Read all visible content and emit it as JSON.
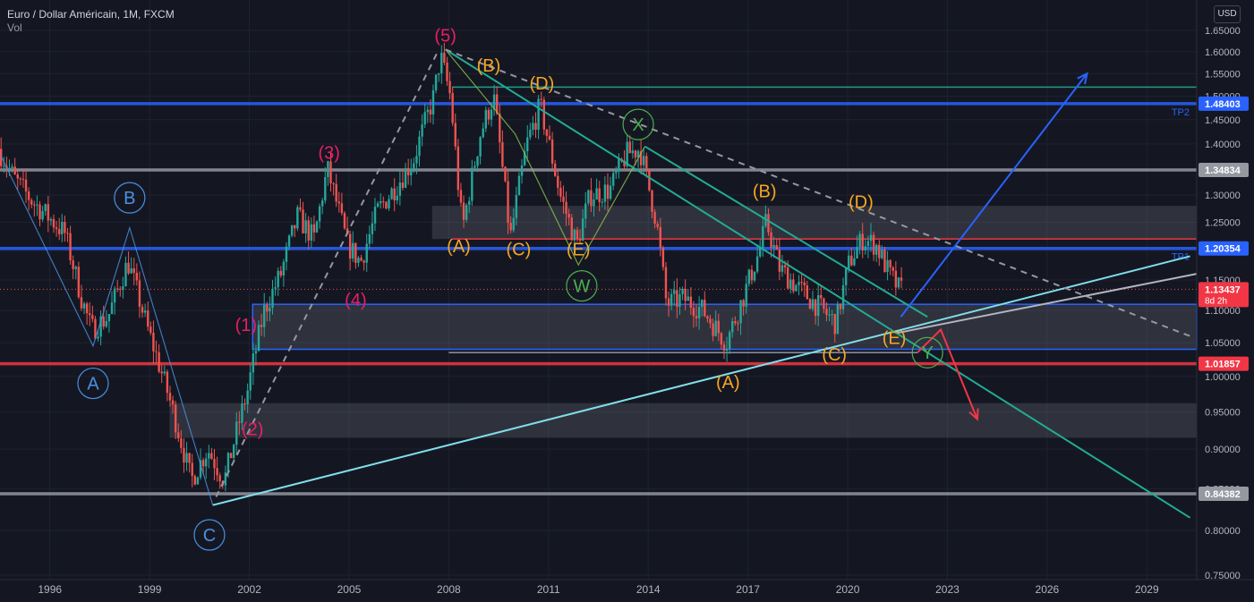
{
  "header": {
    "title": "Euro / Dollar Américain, 1M, FXCM",
    "indicator": "Vol",
    "currency_button": "USD"
  },
  "colors": {
    "background": "#141722",
    "grid": "#1e2230",
    "candle_up": "#26a69a",
    "candle_down": "#ef5350",
    "wave_primary": "#e91e63",
    "wave_corrective": "#f5a623",
    "wave_abc": "#4a90e2",
    "wave_wxy": "#4caf50",
    "level_blue": "#2962ff",
    "level_red": "#f23645",
    "level_gray": "#9598a1",
    "trend_cyan": "#80deea",
    "trend_teal": "#22ab94",
    "projection_blue": "#2962ff",
    "projection_red": "#f23645"
  },
  "chart_data": {
    "type": "candlestick",
    "symbol": "EURUSD",
    "timeframe": "1M",
    "x_range": [
      1995.0,
      2031.0
    ],
    "ylim": [
      0.75,
      1.67
    ],
    "log_scale": true,
    "grid": true,
    "x_ticks": [
      "1996",
      "1999",
      "2002",
      "2005",
      "2008",
      "2011",
      "2014",
      "2017",
      "2020",
      "2023",
      "2026",
      "2029"
    ],
    "y_ticks": [
      "1.65000",
      "1.60000",
      "1.55000",
      "1.50000",
      "1.45000",
      "1.40000",
      "1.35000",
      "1.30000",
      "1.25000",
      "1.20000",
      "1.15000",
      "1.10000",
      "1.05000",
      "1.00000",
      "0.95000",
      "0.90000",
      "0.85000",
      "0.80000",
      "0.75000"
    ],
    "price_path": [
      [
        1995.0,
        1.39
      ],
      [
        1995.5,
        1.33
      ],
      [
        1996.0,
        1.29
      ],
      [
        1996.5,
        1.26
      ],
      [
        1997.0,
        1.23
      ],
      [
        1997.5,
        1.12
      ],
      [
        1997.8,
        1.07
      ],
      [
        1998.3,
        1.09
      ],
      [
        1998.9,
        1.18
      ],
      [
        1999.5,
        1.07
      ],
      [
        2000.2,
        0.96
      ],
      [
        2000.8,
        0.86
      ],
      [
        2001.3,
        0.9
      ],
      [
        2001.8,
        0.86
      ],
      [
        2002.5,
        0.98
      ],
      [
        2003.0,
        1.1
      ],
      [
        2003.5,
        1.16
      ],
      [
        2004.0,
        1.26
      ],
      [
        2004.5,
        1.22
      ],
      [
        2004.9,
        1.35
      ],
      [
        2005.5,
        1.21
      ],
      [
        2005.9,
        1.18
      ],
      [
        2006.4,
        1.27
      ],
      [
        2007.0,
        1.32
      ],
      [
        2007.5,
        1.37
      ],
      [
        2008.1,
        1.5
      ],
      [
        2008.3,
        1.59
      ],
      [
        2008.6,
        1.5
      ],
      [
        2008.9,
        1.27
      ],
      [
        2009.0,
        1.25
      ],
      [
        2009.5,
        1.42
      ],
      [
        2009.9,
        1.5
      ],
      [
        2010.4,
        1.22
      ],
      [
        2010.9,
        1.4
      ],
      [
        2011.3,
        1.48
      ],
      [
        2011.9,
        1.3
      ],
      [
        2012.4,
        1.21
      ],
      [
        2012.8,
        1.3
      ],
      [
        2013.4,
        1.31
      ],
      [
        2013.9,
        1.38
      ],
      [
        2014.3,
        1.39
      ],
      [
        2014.8,
        1.25
      ],
      [
        2015.1,
        1.11
      ],
      [
        2015.6,
        1.12
      ],
      [
        2016.2,
        1.1
      ],
      [
        2016.9,
        1.05
      ],
      [
        2017.4,
        1.12
      ],
      [
        2017.9,
        1.2
      ],
      [
        2018.1,
        1.25
      ],
      [
        2018.5,
        1.17
      ],
      [
        2019.0,
        1.14
      ],
      [
        2019.6,
        1.11
      ],
      [
        2020.2,
        1.08
      ],
      [
        2020.6,
        1.18
      ],
      [
        2021.0,
        1.22
      ],
      [
        2021.4,
        1.21
      ],
      [
        2021.8,
        1.16
      ],
      [
        2022.1,
        1.13437
      ]
    ],
    "last_price": "1.13437",
    "countdown": "8d 2h",
    "price_labels": [
      {
        "value": "1.48403",
        "color": "#2962ff"
      },
      {
        "value": "1.34834",
        "color": "#9598a1"
      },
      {
        "value": "1.20354",
        "color": "#2962ff"
      },
      {
        "value": "1.13437",
        "color": "#f23645"
      },
      {
        "value": "1.01857",
        "color": "#f23645"
      },
      {
        "value": "0.84382",
        "color": "#9598a1"
      }
    ],
    "horizontal_levels": [
      {
        "price": 1.48403,
        "color": "#2962ff",
        "label": "TP2"
      },
      {
        "price": 1.34834,
        "color": "#9598a1",
        "label": ""
      },
      {
        "price": 1.20354,
        "color": "#2962ff",
        "label": "TP1"
      },
      {
        "price": 1.22,
        "color": "#f23645",
        "label": "",
        "from": 2008.6
      },
      {
        "price": 1.01857,
        "color": "#f23645",
        "label": ""
      },
      {
        "price": 0.84382,
        "color": "#9598a1",
        "label": ""
      },
      {
        "price": 1.52,
        "color": "#22ab94",
        "label": "",
        "from": 2008.6
      },
      {
        "price": 1.035,
        "color": "#9598a1",
        "label": "",
        "from": 2008.5,
        "to": 2022.6
      }
    ],
    "zones": [
      {
        "x1": 2008.0,
        "x2": 2031.0,
        "y1": 1.22,
        "y2": 1.28
      },
      {
        "x1": 2002.6,
        "x2": 2031.0,
        "y1": 1.04,
        "y2": 1.11,
        "border": "#2962ff"
      },
      {
        "x1": 2000.1,
        "x2": 2031.0,
        "y1": 0.915,
        "y2": 0.962
      }
    ],
    "trendlines": [
      {
        "x1": 2001.4,
        "y1": 0.83,
        "x2": 2030.8,
        "y2": 1.19,
        "color": "#80deea",
        "dash": false
      },
      {
        "x1": 2008.4,
        "y1": 1.605,
        "x2": 2030.8,
        "y2": 0.815,
        "color": "#22ab94",
        "dash": false
      },
      {
        "x1": 2008.4,
        "y1": 1.605,
        "x2": 2030.8,
        "y2": 1.06,
        "color": "#9598a1",
        "dash": true
      },
      {
        "x1": 2014.4,
        "y1": 1.395,
        "x2": 2022.9,
        "y2": 1.09,
        "color": "#22ab94",
        "dash": false
      },
      {
        "x1": 2001.5,
        "y1": 0.84,
        "x2": 2008.2,
        "y2": 1.605,
        "color": "#9598a1",
        "dash": true
      },
      {
        "x1": 2022.0,
        "y1": 1.065,
        "x2": 2031.0,
        "y2": 1.16,
        "color": "#b2b5be",
        "dash": false
      }
    ],
    "wave_paths": [
      {
        "color": "#4a90e2",
        "points": [
          [
            1995.0,
            1.38
          ],
          [
            1997.8,
            1.045
          ],
          [
            1998.9,
            1.24
          ],
          [
            2001.4,
            0.83
          ]
        ]
      },
      {
        "color": "#8bc34a",
        "points": [
          [
            2008.4,
            1.605
          ],
          [
            2010.5,
            1.42
          ],
          [
            2012.4,
            1.175
          ],
          [
            2014.4,
            1.395
          ]
        ]
      }
    ],
    "wave_labels": [
      {
        "text": "(5)",
        "x": 2008.4,
        "y": 1.635,
        "style": "primary"
      },
      {
        "text": "(3)",
        "x": 2004.9,
        "y": 1.38,
        "style": "primary"
      },
      {
        "text": "(4)",
        "x": 2005.7,
        "y": 1.115,
        "style": "primary"
      },
      {
        "text": "(1)",
        "x": 2002.4,
        "y": 1.075,
        "style": "primary"
      },
      {
        "text": "(2)",
        "x": 2002.6,
        "y": 0.925,
        "style": "primary"
      },
      {
        "text": "(B)",
        "x": 2009.7,
        "y": 1.565,
        "style": "corrective"
      },
      {
        "text": "(D)",
        "x": 2011.3,
        "y": 1.525,
        "style": "corrective"
      },
      {
        "text": "(A)",
        "x": 2008.8,
        "y": 1.205,
        "style": "corrective"
      },
      {
        "text": "(C)",
        "x": 2010.6,
        "y": 1.2,
        "style": "corrective"
      },
      {
        "text": "(E)",
        "x": 2012.4,
        "y": 1.2,
        "style": "corrective"
      },
      {
        "text": "(B)",
        "x": 2018.0,
        "y": 1.305,
        "style": "corrective"
      },
      {
        "text": "(D)",
        "x": 2020.9,
        "y": 1.285,
        "style": "corrective"
      },
      {
        "text": "(E)",
        "x": 2021.9,
        "y": 1.055,
        "style": "corrective"
      },
      {
        "text": "(C)",
        "x": 2020.1,
        "y": 1.03,
        "style": "corrective"
      },
      {
        "text": "(A)",
        "x": 2016.9,
        "y": 0.99,
        "style": "corrective"
      },
      {
        "text": "B",
        "x": 1998.9,
        "y": 1.295,
        "style": "circle-abc"
      },
      {
        "text": "A",
        "x": 1997.8,
        "y": 0.99,
        "style": "circle-abc"
      },
      {
        "text": "C",
        "x": 2001.3,
        "y": 0.795,
        "style": "circle-abc"
      },
      {
        "text": "X",
        "x": 2014.2,
        "y": 1.44,
        "style": "circle-wxy"
      },
      {
        "text": "W",
        "x": 2012.5,
        "y": 1.14,
        "style": "circle-wxy"
      },
      {
        "text": "Y",
        "x": 2022.9,
        "y": 1.035,
        "style": "circle-wxy"
      }
    ],
    "projections": [
      {
        "color": "#2962ff",
        "points": [
          [
            2022.1,
            1.09
          ],
          [
            2027.7,
            1.55
          ]
        ]
      },
      {
        "color": "#f23645",
        "points": [
          [
            2022.6,
            1.035
          ],
          [
            2023.3,
            1.07
          ],
          [
            2024.4,
            0.94
          ]
        ]
      }
    ]
  }
}
